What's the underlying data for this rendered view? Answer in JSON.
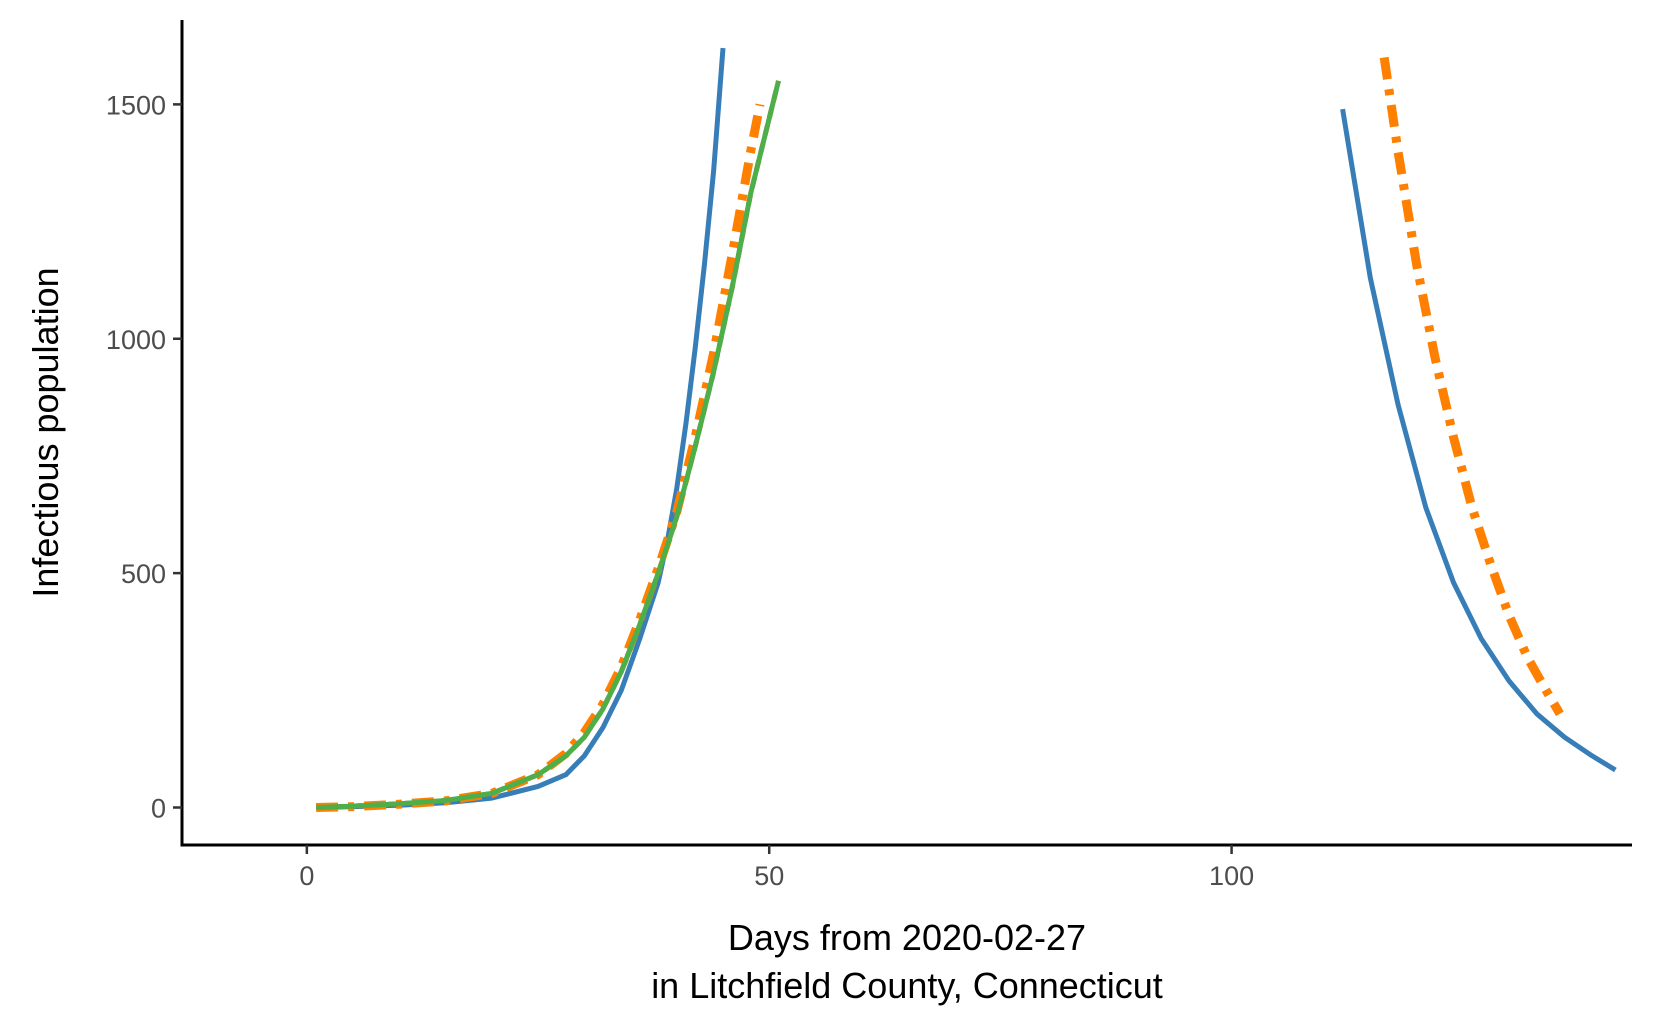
{
  "chart_data": {
    "type": "line",
    "title": "",
    "xlabel_lines": [
      "Days from 2020-02-27",
      "in Litchfield County, Connecticut"
    ],
    "ylabel": "Infectious population",
    "xlim": [
      -13.5,
      143.3
    ],
    "ylim": [
      -80,
      1680
    ],
    "x_ticks": [
      0,
      50,
      100
    ],
    "x_tick_labels": [
      "0",
      "50",
      "100"
    ],
    "y_ticks": [
      0,
      500,
      1000,
      1500
    ],
    "y_tick_labels": [
      "0",
      "500",
      "1000",
      "1500"
    ],
    "grid": false,
    "legend": "none",
    "series": [
      {
        "color": "#377eb8",
        "dash": "solid",
        "segments": [
          {
            "x": [
              1,
              5,
              10,
              15,
              20,
              25,
              28,
              30,
              32,
              34,
              36,
              38,
              39,
              40,
              41,
              42,
              43,
              44,
              45
            ],
            "y": [
              0,
              2,
              5,
              10,
              20,
              45,
              70,
              110,
              170,
              250,
              360,
              480,
              570,
              680,
              820,
              980,
              1160,
              1360,
              1620
            ]
          },
          {
            "x": [
              112,
              115,
              118,
              121,
              124,
              127,
              130,
              133,
              136,
              139,
              141.5
            ],
            "y": [
              1490,
              1130,
              860,
              640,
              480,
              360,
              270,
              200,
              150,
              110,
              80
            ]
          }
        ]
      },
      {
        "color": "#e41a1c",
        "dash": "10,8",
        "segments": [
          {
            "x": [
              1,
              5,
              10,
              15,
              20,
              25,
              28,
              30,
              32,
              34,
              36,
              38,
              40,
              42,
              44,
              46,
              48,
              50,
              51
            ],
            "y": [
              0,
              3,
              8,
              15,
              30,
              70,
              110,
              150,
              210,
              290,
              390,
              500,
              620,
              770,
              930,
              1110,
              1310,
              1470,
              1550
            ]
          }
        ]
      },
      {
        "color": "#ff7f00",
        "dash": "22,10,6,10",
        "segments": [
          {
            "x": [
              1,
              5,
              10,
              15,
              20,
              25,
              28,
              30,
              32,
              34,
              36,
              38,
              40,
              42,
              44,
              46,
              48,
              49
            ],
            "y": [
              0,
              2,
              7,
              14,
              30,
              70,
              115,
              160,
              220,
              300,
              400,
              510,
              630,
              790,
              970,
              1180,
              1400,
              1500
            ]
          },
          {
            "x": [
              116.5,
              118,
              120,
              122,
              124,
              126,
              128,
              130,
              132,
              134,
              135.5
            ],
            "y": [
              1600,
              1400,
              1160,
              960,
              790,
              640,
              520,
              410,
              320,
              250,
              200
            ]
          }
        ]
      },
      {
        "color": "#4daf4a",
        "dash": "solid",
        "segments": [
          {
            "x": [
              1,
              5,
              10,
              15,
              20,
              25,
              28,
              30,
              32,
              34,
              36,
              38,
              40,
              42,
              44,
              46,
              48,
              50,
              51
            ],
            "y": [
              0,
              3,
              8,
              15,
              30,
              70,
              110,
              150,
              210,
              290,
              390,
              500,
              620,
              770,
              930,
              1110,
              1310,
              1470,
              1550
            ]
          }
        ]
      }
    ]
  }
}
